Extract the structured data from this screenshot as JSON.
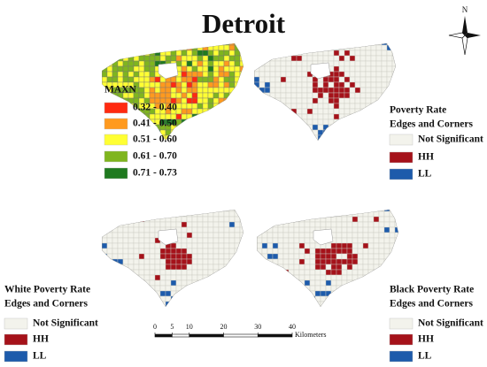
{
  "title": "Detroit",
  "north_label": "N",
  "legends": [
    {
      "title": [
        "MAXN"
      ],
      "items": [
        {
          "label": "0.32 - 0.40",
          "color": "#ff2a10"
        },
        {
          "label": "0.41 - 0.50",
          "color": "#ff9a1e"
        },
        {
          "label": "0.51 - 0.60",
          "color": "#ffff33"
        },
        {
          "label": "0.61 - 0.70",
          "color": "#7fb51e"
        },
        {
          "label": "0.71 - 0.73",
          "color": "#1f7a1f"
        }
      ]
    },
    {
      "title": [
        "Poverty Rate",
        "Edges and Corners"
      ],
      "items": [
        {
          "label": "Not Significant",
          "color": "#f3f3ec"
        },
        {
          "label": "HH",
          "color": "#a5121a"
        },
        {
          "label": "LL",
          "color": "#1d5bab"
        }
      ]
    },
    {
      "title": [
        "White Poverty Rate",
        "Edges and Corners"
      ],
      "items": [
        {
          "label": "Not Significant",
          "color": "#f3f3ec"
        },
        {
          "label": "HH",
          "color": "#a5121a"
        },
        {
          "label": "LL",
          "color": "#1d5bab"
        }
      ]
    },
    {
      "title": [
        "Black Poverty Rate",
        "Edges and Corners"
      ],
      "items": [
        {
          "label": "Not Significant",
          "color": "#f3f3ec"
        },
        {
          "label": "HH",
          "color": "#a5121a"
        },
        {
          "label": "LL",
          "color": "#1d5bab"
        }
      ]
    }
  ],
  "scale_bar": {
    "ticks": [
      0,
      5,
      10,
      20,
      30,
      40
    ],
    "unit": "Kilometers"
  }
}
